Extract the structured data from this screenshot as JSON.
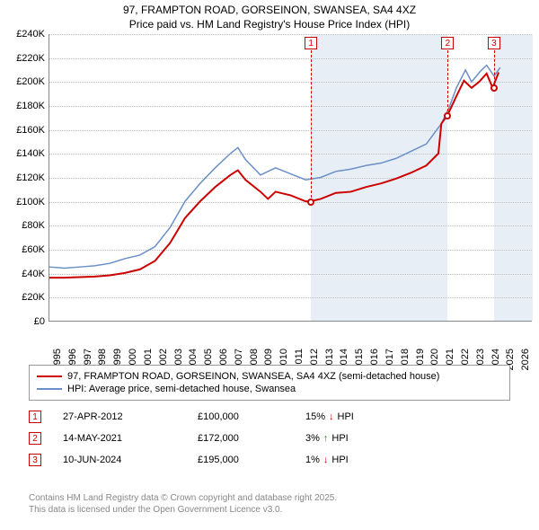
{
  "title": {
    "line1": "97, FRAMPTON ROAD, GORSEINON, SWANSEA, SA4 4XZ",
    "line2": "Price paid vs. HM Land Registry's House Price Index (HPI)"
  },
  "chart": {
    "type": "line",
    "background_color": "#ffffff",
    "grid_color": "#bfbfbf",
    "band_color": "#e8eef6",
    "xlim": [
      1995,
      2027
    ],
    "ylim": [
      0,
      240000
    ],
    "ytick_step": 20000,
    "ytick_prefix": "£",
    "ytick_suffix": "K",
    "xticks": [
      1995,
      1996,
      1997,
      1998,
      1999,
      2000,
      2001,
      2002,
      2003,
      2004,
      2005,
      2006,
      2007,
      2008,
      2009,
      2010,
      2011,
      2012,
      2013,
      2014,
      2015,
      2016,
      2017,
      2018,
      2019,
      2020,
      2021,
      2022,
      2023,
      2024,
      2025,
      2026
    ],
    "series": [
      {
        "name": "97, FRAMPTON ROAD, GORSEINON, SWANSEA, SA4 4XZ (semi-detached house)",
        "color": "#cc0000",
        "line_width": 2,
        "data": [
          [
            1995,
            36000
          ],
          [
            1996,
            36000
          ],
          [
            1997,
            36500
          ],
          [
            1998,
            37000
          ],
          [
            1999,
            38000
          ],
          [
            2000,
            40000
          ],
          [
            2001,
            43000
          ],
          [
            2002,
            50000
          ],
          [
            2003,
            65000
          ],
          [
            2004,
            86000
          ],
          [
            2005,
            100000
          ],
          [
            2006,
            112000
          ],
          [
            2007,
            122000
          ],
          [
            2007.5,
            126000
          ],
          [
            2008,
            118000
          ],
          [
            2009,
            108000
          ],
          [
            2009.5,
            102000
          ],
          [
            2010,
            108000
          ],
          [
            2011,
            105000
          ],
          [
            2012,
            100000
          ],
          [
            2012.3,
            100000
          ],
          [
            2013,
            102000
          ],
          [
            2014,
            107000
          ],
          [
            2015,
            108000
          ],
          [
            2016,
            112000
          ],
          [
            2017,
            115000
          ],
          [
            2018,
            119000
          ],
          [
            2019,
            124000
          ],
          [
            2020,
            130000
          ],
          [
            2020.8,
            140000
          ],
          [
            2021,
            165000
          ],
          [
            2021.4,
            172000
          ],
          [
            2022,
            188000
          ],
          [
            2022.5,
            201000
          ],
          [
            2023,
            195000
          ],
          [
            2023.5,
            200000
          ],
          [
            2024,
            207000
          ],
          [
            2024.4,
            195000
          ],
          [
            2024.8,
            208000
          ]
        ]
      },
      {
        "name": "HPI: Average price, semi-detached house, Swansea",
        "color": "#6b8fc9",
        "line_width": 1.5,
        "data": [
          [
            1995,
            45000
          ],
          [
            1996,
            44000
          ],
          [
            1997,
            45000
          ],
          [
            1998,
            46000
          ],
          [
            1999,
            48000
          ],
          [
            2000,
            52000
          ],
          [
            2001,
            55000
          ],
          [
            2002,
            62000
          ],
          [
            2003,
            78000
          ],
          [
            2004,
            100000
          ],
          [
            2005,
            115000
          ],
          [
            2006,
            128000
          ],
          [
            2007,
            140000
          ],
          [
            2007.5,
            145000
          ],
          [
            2008,
            135000
          ],
          [
            2009,
            122000
          ],
          [
            2010,
            128000
          ],
          [
            2011,
            123000
          ],
          [
            2012,
            118000
          ],
          [
            2013,
            120000
          ],
          [
            2014,
            125000
          ],
          [
            2015,
            127000
          ],
          [
            2016,
            130000
          ],
          [
            2017,
            132000
          ],
          [
            2018,
            136000
          ],
          [
            2019,
            142000
          ],
          [
            2020,
            148000
          ],
          [
            2021,
            165000
          ],
          [
            2021.5,
            178000
          ],
          [
            2022,
            195000
          ],
          [
            2022.6,
            210000
          ],
          [
            2023,
            200000
          ],
          [
            2023.6,
            209000
          ],
          [
            2024,
            214000
          ],
          [
            2024.5,
            205000
          ],
          [
            2024.9,
            212000
          ]
        ]
      }
    ],
    "bands": [
      {
        "from": 2012.32,
        "to": 2021.37
      },
      {
        "from": 2024.44,
        "to": 2027
      }
    ],
    "markers": [
      {
        "n": "1",
        "x": 2012.32,
        "y": 100000
      },
      {
        "n": "2",
        "x": 2021.37,
        "y": 172000
      },
      {
        "n": "3",
        "x": 2024.44,
        "y": 195000
      }
    ]
  },
  "legend": {
    "items": [
      {
        "color": "#cc0000",
        "width": 2,
        "label": "97, FRAMPTON ROAD, GORSEINON, SWANSEA, SA4 4XZ (semi-detached house)"
      },
      {
        "color": "#6b8fc9",
        "width": 2,
        "label": "HPI: Average price, semi-detached house, Swansea"
      }
    ]
  },
  "events": [
    {
      "n": "1",
      "date": "27-APR-2012",
      "price": "£100,000",
      "diff": "15%",
      "arrow": "↓",
      "arrow_color": "#cc0000",
      "vs": "HPI"
    },
    {
      "n": "2",
      "date": "14-MAY-2021",
      "price": "£172,000",
      "diff": "3%",
      "arrow": "↑",
      "arrow_color": "#2a8a2a",
      "vs": "HPI"
    },
    {
      "n": "3",
      "date": "10-JUN-2024",
      "price": "£195,000",
      "diff": "1%",
      "arrow": "↓",
      "arrow_color": "#cc0000",
      "vs": "HPI"
    }
  ],
  "footer": {
    "line1": "Contains HM Land Registry data © Crown copyright and database right 2025.",
    "line2": "This data is licensed under the Open Government Licence v3.0."
  }
}
